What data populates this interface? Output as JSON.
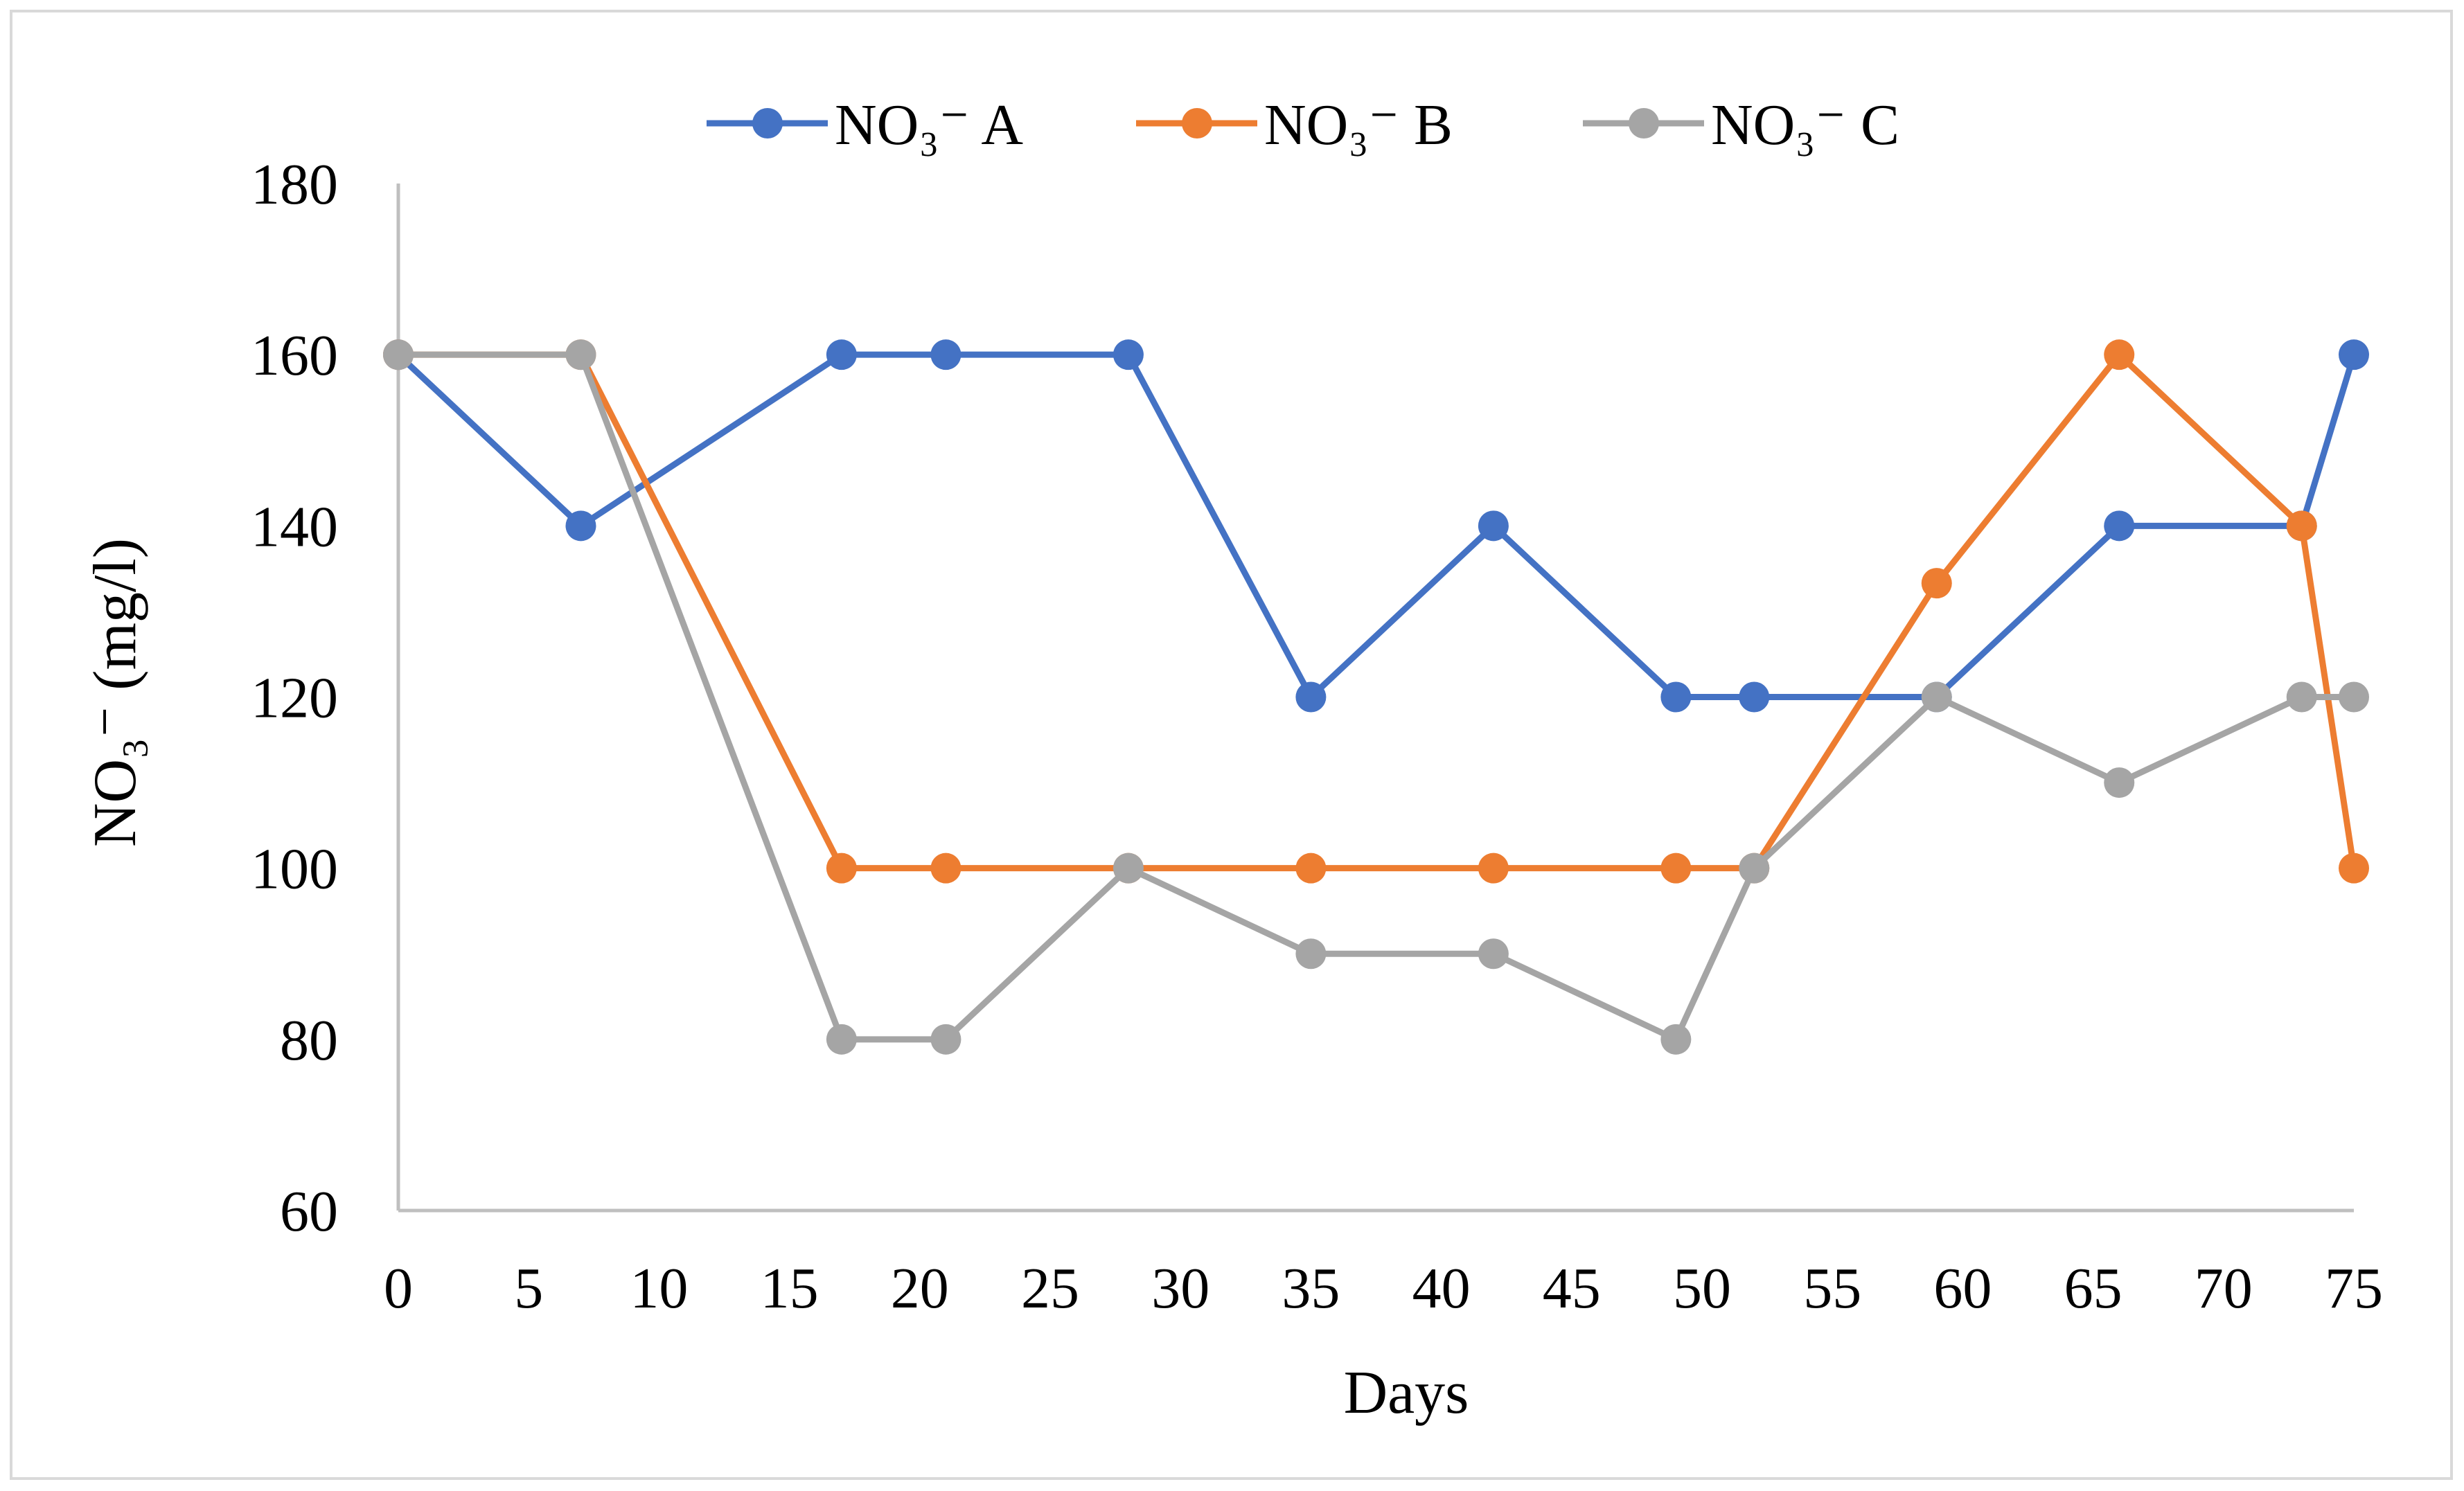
{
  "chart_data": {
    "type": "line",
    "title": "",
    "xlabel": "Days",
    "ylabel": "NO₃⁻ (mg/l)",
    "xlim": [
      0,
      75
    ],
    "ylim": [
      60,
      180
    ],
    "x_ticks": [
      0,
      5,
      10,
      15,
      20,
      25,
      30,
      35,
      40,
      45,
      50,
      55,
      60,
      65,
      70,
      75
    ],
    "y_ticks": [
      60,
      80,
      100,
      120,
      140,
      160,
      180
    ],
    "grid": false,
    "legend_position": "top-center",
    "series": [
      {
        "name": "NO₃⁻ A",
        "color": "#4472c4",
        "x": [
          0,
          7,
          17,
          21,
          28,
          35,
          42,
          49,
          52,
          59,
          66,
          73,
          75
        ],
        "y": [
          160,
          140,
          160,
          160,
          160,
          120,
          140,
          120,
          120,
          120,
          140,
          140,
          160
        ]
      },
      {
        "name": "NO₃⁻ B",
        "color": "#ed7d31",
        "x": [
          0,
          7,
          17,
          21,
          28,
          35,
          42,
          49,
          52,
          59,
          66,
          73,
          75
        ],
        "y": [
          160,
          160,
          100,
          100,
          100,
          100,
          100,
          100,
          100,
          133.3,
          160,
          140,
          100
        ]
      },
      {
        "name": "NO₃⁻ C",
        "color": "#a5a5a5",
        "x": [
          0,
          7,
          17,
          21,
          28,
          35,
          42,
          49,
          52,
          59,
          66,
          73,
          75
        ],
        "y": [
          160,
          160,
          80,
          80,
          100,
          90,
          90,
          80,
          100,
          120,
          110,
          120,
          120
        ]
      }
    ]
  }
}
